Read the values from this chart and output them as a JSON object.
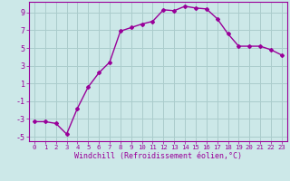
{
  "x": [
    0,
    1,
    2,
    3,
    4,
    5,
    6,
    7,
    8,
    9,
    10,
    11,
    12,
    13,
    14,
    15,
    16,
    17,
    18,
    19,
    20,
    21,
    22,
    23
  ],
  "y": [
    -3.3,
    -3.3,
    -3.5,
    -4.7,
    -1.8,
    0.6,
    2.2,
    3.4,
    6.9,
    7.3,
    7.7,
    8.0,
    9.3,
    9.2,
    9.7,
    9.5,
    9.4,
    8.3,
    6.6,
    5.2,
    5.2,
    5.2,
    4.8,
    4.2
  ],
  "line_color": "#990099",
  "marker": "D",
  "marker_size": 2.0,
  "bg_color": "#cce8e8",
  "grid_color": "#aacccc",
  "xlabel": "Windchill (Refroidissement éolien,°C)",
  "ylabel": "",
  "xlim": [
    -0.5,
    23.5
  ],
  "ylim": [
    -5.5,
    10.2
  ],
  "yticks": [
    -5,
    -3,
    -1,
    1,
    3,
    5,
    7,
    9
  ],
  "xticks": [
    0,
    1,
    2,
    3,
    4,
    5,
    6,
    7,
    8,
    9,
    10,
    11,
    12,
    13,
    14,
    15,
    16,
    17,
    18,
    19,
    20,
    21,
    22,
    23
  ],
  "tick_color": "#990099",
  "label_color": "#990099",
  "font_family": "monospace",
  "xlabel_fontsize": 6.0,
  "ytick_fontsize": 6.0,
  "xtick_fontsize": 5.2
}
